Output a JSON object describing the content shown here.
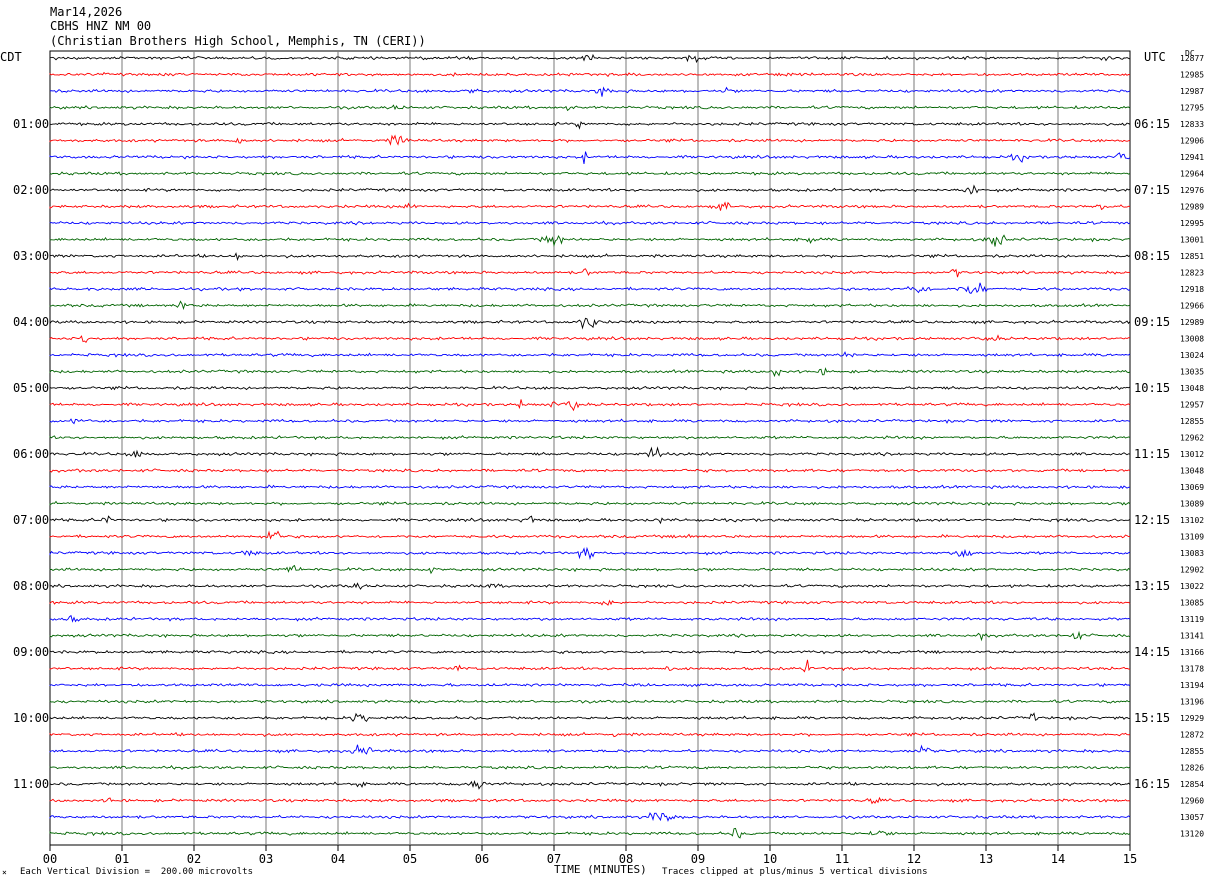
{
  "header": {
    "date": "Mar14,2026",
    "station": "CBHS HNZ NM 00",
    "location": "(Christian Brothers High School, Memphis, TN (CERI))"
  },
  "left_tz": "CDT",
  "right_tz": "UTC",
  "dc_label": "DC",
  "footer": {
    "scale": "Each Vertical Division =  200.00 microvolts",
    "clip": "Traces clipped at plus/minus 5 vertical divisions",
    "mark": "×"
  },
  "colors": {
    "cycle": [
      "#000000",
      "#ff0000",
      "#0000ff",
      "#006400"
    ],
    "grid": "#7a7a7a"
  },
  "chart_data": {
    "type": "line",
    "title": "",
    "xlabel": "TIME (MINUTES)",
    "xlim": [
      0,
      15
    ],
    "xticks": [
      "00",
      "01",
      "02",
      "03",
      "04",
      "05",
      "06",
      "07",
      "08",
      "09",
      "10",
      "11",
      "12",
      "13",
      "14",
      "15"
    ],
    "left_hour_labels": [
      "01:00",
      "02:00",
      "03:00",
      "04:00",
      "05:00",
      "06:00",
      "07:00",
      "08:00",
      "09:00",
      "10:00",
      "11:00"
    ],
    "right_hour_labels": [
      "06:15",
      "07:15",
      "08:15",
      "09:15",
      "10:15",
      "11:15",
      "12:15",
      "13:15",
      "14:15",
      "15:15",
      "16:15"
    ],
    "dc_offsets": [
      12877,
      12985,
      12987,
      12795,
      12833,
      12906,
      12941,
      12964,
      12976,
      12989,
      12995,
      13001,
      12851,
      12823,
      12918,
      12966,
      12989,
      13008,
      13024,
      13035,
      13048,
      12957,
      12855,
      12962,
      13012,
      13048,
      13069,
      13089,
      13102,
      13109,
      13083,
      12902,
      13022,
      13085,
      13119,
      13141,
      13166,
      13178,
      13194,
      13196,
      12929,
      12872,
      12855,
      12826,
      12854,
      12960,
      13057,
      13120
    ]
  }
}
